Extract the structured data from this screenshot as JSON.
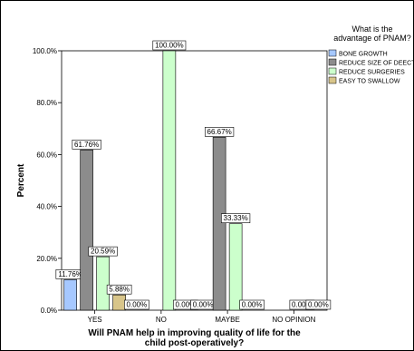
{
  "colors": {
    "bone_growth": "#a6c8ff",
    "reduce_size_of_defect": "#8c8c8c",
    "reduce_surgeries": "#ccffcc",
    "easy_to_swallow": "#d8c58a",
    "background": "#ffffff",
    "axis": "#000000"
  },
  "chart_data": {
    "type": "bar",
    "categories": [
      "YES",
      "NO",
      "MAYBE",
      "NO OPINION"
    ],
    "series": [
      {
        "name": "BONE GROWTH",
        "values": [
          11.76,
          0.0,
          0.0,
          0.0
        ],
        "labels": [
          "11.76%",
          "0.00%",
          "0.00%",
          null
        ]
      },
      {
        "name": "REDUCE SIZE OF DEECT",
        "values": [
          61.76,
          0.0,
          66.67,
          0.0
        ],
        "labels": [
          "61.76%",
          null,
          "66.67%",
          null
        ]
      },
      {
        "name": "REDUCE SURGERIES",
        "values": [
          20.59,
          100.0,
          33.33,
          0.0
        ],
        "labels": [
          "20.59%",
          "100.00%",
          "33.33%",
          "0.00%"
        ]
      },
      {
        "name": "EASY TO SWALLOW",
        "values": [
          5.88,
          0.0,
          0.0,
          0.0
        ],
        "labels": [
          "5.88%",
          "0.00%",
          "0.00%",
          "0.00%"
        ]
      }
    ],
    "xlabel": "Will PNAM help in improving quality of life for the child post-operatively?",
    "xlabel_lines": [
      "Will PNAM help in improving quality of life for the",
      "child post-operatively?"
    ],
    "ylabel": "Percent",
    "ylim": [
      0,
      100
    ],
    "yticks": [
      0,
      20,
      40,
      60,
      80,
      100
    ],
    "ytick_labels": [
      "0.0%",
      "20.0%",
      "40.0%",
      "60.0%",
      "80.0%",
      "100.0%"
    ],
    "legend": {
      "title_lines": [
        "What is the",
        "advantage of PNAM?"
      ],
      "placement": "right"
    },
    "grid": false
  }
}
